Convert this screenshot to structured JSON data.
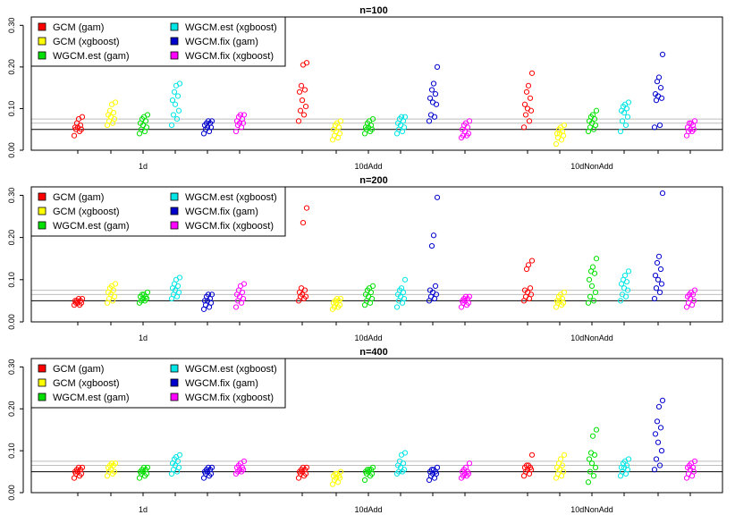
{
  "colors": {
    "GCM (gam)": "#ff0000",
    "GCM (xgboost)": "#ffff00",
    "WGCM.est (gam)": "#00e000",
    "WGCM.est (xgboost)": "#00e5e5",
    "WGCM.fix (gam)": "#0000cd",
    "WGCM.fix (xgboost)": "#ff00ff",
    "reference_black": "#000000",
    "reference_gray": "#bebebe"
  },
  "chart_data": [
    {
      "type": "scatter",
      "title": "n=100",
      "categories": [
        "1d",
        "10dAdd",
        "10dNonAdd"
      ],
      "methods": [
        "GCM (gam)",
        "GCM (xgboost)",
        "WGCM.est (gam)",
        "WGCM.est (xgboost)",
        "WGCM.fix (gam)",
        "WGCM.fix (xgboost)"
      ],
      "ylim": [
        0,
        0.32
      ],
      "yticks": [
        "0.00",
        "0.10",
        "0.20",
        "0.30"
      ],
      "reference_lines": [
        0.05,
        0.065,
        0.075
      ],
      "legend_position": "top-left",
      "series": [
        {
          "name": "GCM (gam)",
          "values": [
            [
              0.035,
              0.045,
              0.05,
              0.05,
              0.055,
              0.055,
              0.06,
              0.065,
              0.075,
              0.08
            ],
            [
              0.07,
              0.085,
              0.095,
              0.105,
              0.12,
              0.14,
              0.145,
              0.155,
              0.205,
              0.21
            ],
            [
              0.055,
              0.07,
              0.085,
              0.095,
              0.1,
              0.11,
              0.125,
              0.14,
              0.155,
              0.185
            ]
          ]
        },
        {
          "name": "GCM (xgboost)",
          "values": [
            [
              0.06,
              0.065,
              0.07,
              0.075,
              0.08,
              0.085,
              0.09,
              0.095,
              0.11,
              0.115
            ],
            [
              0.025,
              0.03,
              0.035,
              0.04,
              0.045,
              0.05,
              0.055,
              0.06,
              0.065,
              0.07
            ],
            [
              0.015,
              0.025,
              0.03,
              0.035,
              0.04,
              0.04,
              0.045,
              0.05,
              0.055,
              0.06
            ]
          ]
        },
        {
          "name": "WGCM.est (gam)",
          "values": [
            [
              0.04,
              0.045,
              0.05,
              0.055,
              0.06,
              0.065,
              0.07,
              0.075,
              0.08,
              0.085
            ],
            [
              0.04,
              0.045,
              0.05,
              0.05,
              0.055,
              0.055,
              0.06,
              0.065,
              0.07,
              0.075
            ],
            [
              0.045,
              0.05,
              0.055,
              0.06,
              0.065,
              0.07,
              0.075,
              0.08,
              0.085,
              0.095
            ]
          ]
        },
        {
          "name": "WGCM.est (xgboost)",
          "values": [
            [
              0.06,
              0.075,
              0.085,
              0.095,
              0.11,
              0.12,
              0.13,
              0.14,
              0.155,
              0.16
            ],
            [
              0.04,
              0.045,
              0.05,
              0.055,
              0.06,
              0.065,
              0.07,
              0.075,
              0.08,
              0.08
            ],
            [
              0.045,
              0.06,
              0.07,
              0.08,
              0.09,
              0.095,
              0.1,
              0.105,
              0.11,
              0.115
            ]
          ]
        },
        {
          "name": "WGCM.fix (gam)",
          "values": [
            [
              0.04,
              0.045,
              0.05,
              0.055,
              0.055,
              0.06,
              0.065,
              0.065,
              0.07,
              0.07
            ],
            [
              0.07,
              0.08,
              0.085,
              0.11,
              0.115,
              0.125,
              0.135,
              0.145,
              0.16,
              0.2
            ],
            [
              0.055,
              0.06,
              0.12,
              0.125,
              0.13,
              0.135,
              0.15,
              0.165,
              0.175,
              0.23
            ]
          ]
        },
        {
          "name": "WGCM.fix (xgboost)",
          "values": [
            [
              0.045,
              0.055,
              0.06,
              0.065,
              0.065,
              0.07,
              0.075,
              0.08,
              0.085,
              0.085
            ],
            [
              0.03,
              0.035,
              0.035,
              0.04,
              0.045,
              0.05,
              0.055,
              0.06,
              0.065,
              0.07
            ],
            [
              0.035,
              0.045,
              0.045,
              0.05,
              0.05,
              0.055,
              0.06,
              0.065,
              0.065,
              0.07
            ]
          ]
        }
      ]
    },
    {
      "type": "scatter",
      "title": "n=200",
      "categories": [
        "1d",
        "10dAdd",
        "10dNonAdd"
      ],
      "methods": [
        "GCM (gam)",
        "GCM (xgboost)",
        "WGCM.est (gam)",
        "WGCM.est (xgboost)",
        "WGCM.fix (gam)",
        "WGCM.fix (xgboost)"
      ],
      "ylim": [
        0,
        0.32
      ],
      "yticks": [
        "0.00",
        "0.10",
        "0.20",
        "0.30"
      ],
      "reference_lines": [
        0.05,
        0.065,
        0.075
      ],
      "legend_position": "top-left",
      "series": [
        {
          "name": "GCM (gam)",
          "values": [
            [
              0.04,
              0.04,
              0.045,
              0.045,
              0.045,
              0.05,
              0.05,
              0.05,
              0.055,
              0.055
            ],
            [
              0.05,
              0.055,
              0.06,
              0.06,
              0.065,
              0.07,
              0.075,
              0.08,
              0.235,
              0.27
            ],
            [
              0.05,
              0.055,
              0.06,
              0.065,
              0.07,
              0.075,
              0.08,
              0.125,
              0.135,
              0.145
            ]
          ]
        },
        {
          "name": "GCM (xgboost)",
          "values": [
            [
              0.045,
              0.05,
              0.055,
              0.06,
              0.065,
              0.07,
              0.075,
              0.08,
              0.085,
              0.09
            ],
            [
              0.03,
              0.035,
              0.035,
              0.04,
              0.045,
              0.045,
              0.05,
              0.05,
              0.055,
              0.055
            ],
            [
              0.035,
              0.04,
              0.045,
              0.045,
              0.05,
              0.05,
              0.055,
              0.06,
              0.065,
              0.07
            ]
          ]
        },
        {
          "name": "WGCM.est (gam)",
          "values": [
            [
              0.045,
              0.05,
              0.05,
              0.055,
              0.055,
              0.06,
              0.06,
              0.065,
              0.065,
              0.07
            ],
            [
              0.04,
              0.045,
              0.05,
              0.055,
              0.06,
              0.065,
              0.07,
              0.075,
              0.08,
              0.085
            ],
            [
              0.045,
              0.05,
              0.06,
              0.07,
              0.085,
              0.1,
              0.115,
              0.12,
              0.13,
              0.15
            ]
          ]
        },
        {
          "name": "WGCM.est (xgboost)",
          "values": [
            [
              0.055,
              0.06,
              0.065,
              0.07,
              0.075,
              0.08,
              0.085,
              0.09,
              0.1,
              0.105
            ],
            [
              0.035,
              0.045,
              0.05,
              0.055,
              0.06,
              0.065,
              0.07,
              0.075,
              0.08,
              0.1
            ],
            [
              0.05,
              0.06,
              0.065,
              0.075,
              0.08,
              0.09,
              0.095,
              0.1,
              0.11,
              0.12
            ]
          ]
        },
        {
          "name": "WGCM.fix (gam)",
          "values": [
            [
              0.03,
              0.035,
              0.04,
              0.045,
              0.05,
              0.05,
              0.055,
              0.06,
              0.065,
              0.065
            ],
            [
              0.05,
              0.055,
              0.06,
              0.065,
              0.07,
              0.075,
              0.085,
              0.18,
              0.205,
              0.295
            ],
            [
              0.055,
              0.07,
              0.08,
              0.09,
              0.1,
              0.11,
              0.125,
              0.14,
              0.155,
              0.305
            ]
          ]
        },
        {
          "name": "WGCM.fix (xgboost)",
          "values": [
            [
              0.035,
              0.045,
              0.05,
              0.055,
              0.06,
              0.065,
              0.07,
              0.075,
              0.085,
              0.09
            ],
            [
              0.035,
              0.04,
              0.045,
              0.045,
              0.05,
              0.05,
              0.055,
              0.055,
              0.06,
              0.06
            ],
            [
              0.035,
              0.04,
              0.045,
              0.05,
              0.055,
              0.06,
              0.065,
              0.065,
              0.07,
              0.075
            ]
          ]
        }
      ]
    },
    {
      "type": "scatter",
      "title": "n=400",
      "categories": [
        "1d",
        "10dAdd",
        "10dNonAdd"
      ],
      "methods": [
        "GCM (gam)",
        "GCM (xgboost)",
        "WGCM.est (gam)",
        "WGCM.est (xgboost)",
        "WGCM.fix (gam)",
        "WGCM.fix (xgboost)"
      ],
      "ylim": [
        0,
        0.32
      ],
      "yticks": [
        "0.00",
        "0.10",
        "0.20",
        "0.30"
      ],
      "reference_lines": [
        0.05,
        0.065,
        0.075
      ],
      "legend_position": "top-left",
      "series": [
        {
          "name": "GCM (gam)",
          "values": [
            [
              0.035,
              0.04,
              0.045,
              0.045,
              0.05,
              0.05,
              0.055,
              0.055,
              0.06,
              0.06
            ],
            [
              0.035,
              0.04,
              0.045,
              0.045,
              0.05,
              0.05,
              0.055,
              0.055,
              0.06,
              0.06
            ],
            [
              0.04,
              0.045,
              0.05,
              0.055,
              0.055,
              0.06,
              0.06,
              0.065,
              0.065,
              0.09
            ]
          ]
        },
        {
          "name": "GCM (xgboost)",
          "values": [
            [
              0.04,
              0.045,
              0.05,
              0.05,
              0.055,
              0.06,
              0.065,
              0.065,
              0.07,
              0.07
            ],
            [
              0.02,
              0.025,
              0.03,
              0.035,
              0.035,
              0.04,
              0.04,
              0.045,
              0.045,
              0.05
            ],
            [
              0.035,
              0.04,
              0.045,
              0.05,
              0.055,
              0.06,
              0.065,
              0.07,
              0.08,
              0.09
            ]
          ]
        },
        {
          "name": "WGCM.est (gam)",
          "values": [
            [
              0.035,
              0.04,
              0.045,
              0.045,
              0.05,
              0.05,
              0.055,
              0.055,
              0.06,
              0.06
            ],
            [
              0.03,
              0.04,
              0.045,
              0.045,
              0.05,
              0.05,
              0.055,
              0.055,
              0.055,
              0.06
            ],
            [
              0.025,
              0.04,
              0.05,
              0.06,
              0.07,
              0.08,
              0.09,
              0.095,
              0.135,
              0.15
            ]
          ]
        },
        {
          "name": "WGCM.est (xgboost)",
          "values": [
            [
              0.045,
              0.05,
              0.055,
              0.06,
              0.065,
              0.07,
              0.075,
              0.08,
              0.085,
              0.09
            ],
            [
              0.045,
              0.05,
              0.05,
              0.055,
              0.06,
              0.065,
              0.07,
              0.075,
              0.09,
              0.095
            ],
            [
              0.04,
              0.045,
              0.05,
              0.055,
              0.06,
              0.06,
              0.065,
              0.07,
              0.075,
              0.08
            ]
          ]
        },
        {
          "name": "WGCM.fix (gam)",
          "values": [
            [
              0.035,
              0.04,
              0.045,
              0.045,
              0.05,
              0.05,
              0.055,
              0.055,
              0.06,
              0.06
            ],
            [
              0.03,
              0.035,
              0.04,
              0.045,
              0.045,
              0.05,
              0.05,
              0.055,
              0.055,
              0.06
            ],
            [
              0.055,
              0.065,
              0.08,
              0.1,
              0.12,
              0.14,
              0.155,
              0.17,
              0.205,
              0.22
            ]
          ]
        },
        {
          "name": "WGCM.fix (xgboost)",
          "values": [
            [
              0.045,
              0.05,
              0.05,
              0.055,
              0.055,
              0.06,
              0.06,
              0.065,
              0.07,
              0.075
            ],
            [
              0.035,
              0.04,
              0.04,
              0.045,
              0.045,
              0.05,
              0.05,
              0.055,
              0.06,
              0.07
            ],
            [
              0.035,
              0.04,
              0.045,
              0.05,
              0.055,
              0.06,
              0.06,
              0.065,
              0.07,
              0.075
            ]
          ]
        }
      ]
    }
  ]
}
